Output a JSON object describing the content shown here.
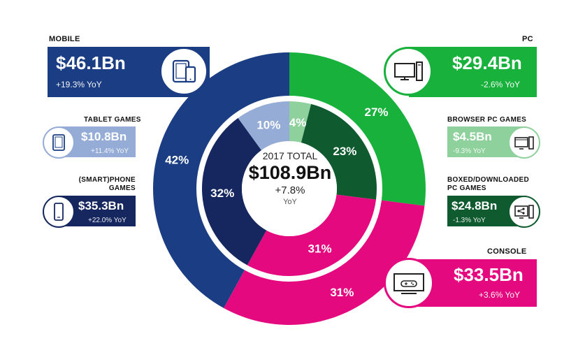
{
  "chart_data": {
    "type": "pie",
    "title": "2017 TOTAL",
    "total": "$108.9Bn",
    "total_growth": "+7.8%",
    "total_growth_unit": "YoY",
    "outer_ring": [
      {
        "name": "PC",
        "value": 27,
        "label": "27%",
        "color": "#17b13b"
      },
      {
        "name": "CONSOLE",
        "value": 31,
        "label": "31%",
        "color": "#e5097f"
      },
      {
        "name": "MOBILE",
        "value": 42,
        "label": "42%",
        "color": "#1a3d83"
      }
    ],
    "inner_ring": [
      {
        "name": "BROWSER PC GAMES",
        "value": 4,
        "label": "4%",
        "color": "#8fd19c"
      },
      {
        "name": "BOXED/DOWNLOADED PC GAMES",
        "value": 23,
        "label": "23%",
        "color": "#0f5a2e"
      },
      {
        "name": "CONSOLE",
        "value": 31,
        "label": "31%",
        "color": "#e5097f"
      },
      {
        "name": "(SMART)PHONE GAMES",
        "value": 32,
        "label": "32%",
        "color": "#15275e"
      },
      {
        "name": "TABLET GAMES",
        "value": 10,
        "label": "10%",
        "color": "#94acd6"
      }
    ]
  },
  "cards": {
    "mobile": {
      "title": "MOBILE",
      "value": "$46.1Bn",
      "growth": "+19.3% YoY",
      "color": "#1a3d83"
    },
    "tablet": {
      "title": "TABLET GAMES",
      "value": "$10.8Bn",
      "growth": "+11.4% YoY",
      "color": "#94acd6"
    },
    "phone": {
      "title_line1": "(SMART)PHONE",
      "title_line2": "GAMES",
      "value": "$35.3Bn",
      "growth": "+22.0% YoY",
      "color": "#15275e"
    },
    "pc": {
      "title": "PC",
      "value": "$29.4Bn",
      "growth": "-2.6% YoY",
      "color": "#17b13b"
    },
    "browser": {
      "title": "BROWSER PC GAMES",
      "value": "$4.5Bn",
      "growth": "-9.3% YoY",
      "color": "#8fd19c"
    },
    "boxed": {
      "title_line1": "BOXED/DOWNLOADED",
      "title_line2": "PC GAMES",
      "value": "$24.8Bn",
      "growth": "-1.3% YoY",
      "color": "#0f5a2e"
    },
    "console": {
      "title": "CONSOLE",
      "value": "$33.5Bn",
      "growth": "+3.6% YoY",
      "color": "#e5097f"
    }
  },
  "icons": {
    "mobile": "tablet-phone-icon",
    "tablet": "tablet-icon",
    "phone": "smartphone-icon",
    "pc": "desktop-pc-icon",
    "browser": "browser-pc-icon",
    "boxed": "download-pc-icon",
    "console": "tv-gamepad-icon"
  }
}
